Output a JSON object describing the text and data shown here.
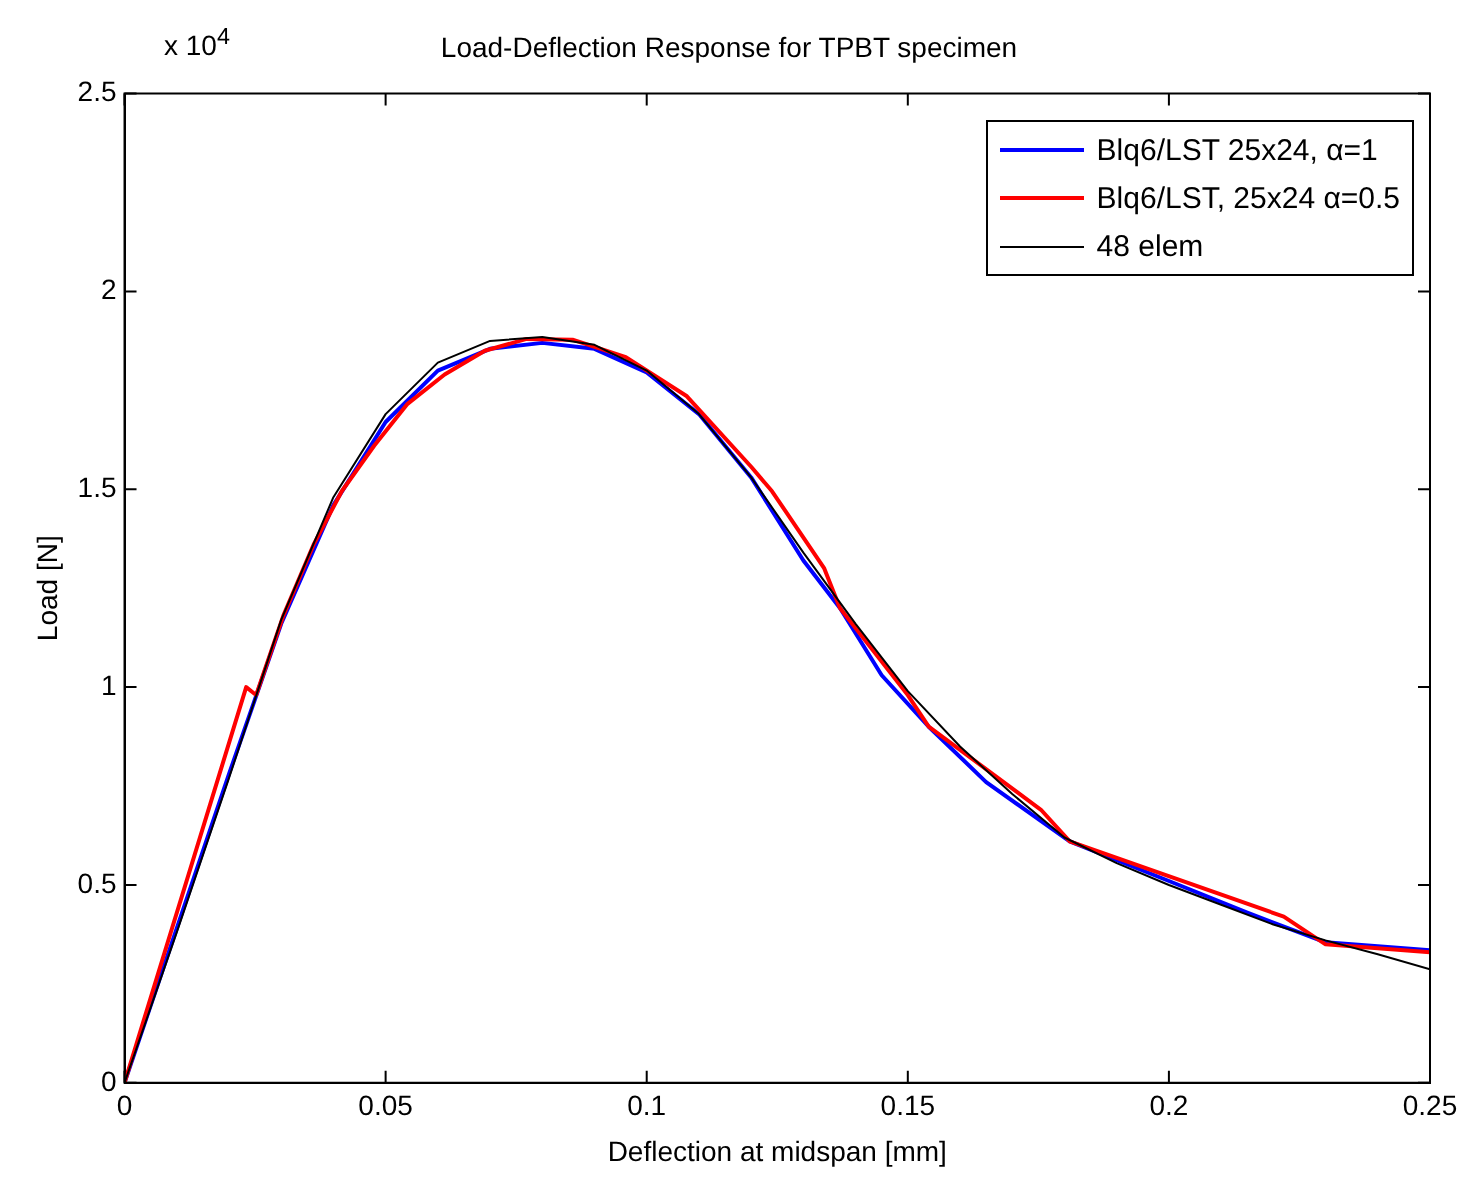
{
  "chart_data": {
    "type": "line",
    "title": "Load-Deflection Response for TPBT specimen",
    "xlabel": "Deflection at midspan [mm]",
    "ylabel": "Load [N]",
    "annotations": [
      "x 10$^{4}$"
    ],
    "xlim": [
      0,
      0.25
    ],
    "xticks": [
      0,
      0.05,
      0.1,
      0.15,
      0.2,
      0.25
    ],
    "ylim": [
      0,
      2.5
    ],
    "yticks": [
      0,
      0.5,
      1,
      1.5,
      2,
      2.5
    ],
    "grid": false,
    "legend": "top right",
    "series": [
      {
        "name": "Blq6/LST 25x24, α=1",
        "color": "#0000ff",
        "x": [
          0,
          0.01,
          0.02,
          0.03,
          0.04,
          0.05,
          0.06,
          0.07,
          0.08,
          0.09,
          0.1,
          0.11,
          0.12,
          0.13,
          0.137,
          0.145,
          0.154,
          0.165,
          0.181,
          0.2,
          0.215,
          0.23,
          0.25
        ],
        "values": [
          0,
          0.39,
          0.78,
          1.16,
          1.46,
          1.67,
          1.8,
          1.855,
          1.87,
          1.855,
          1.795,
          1.69,
          1.53,
          1.32,
          1.2,
          1.03,
          0.9,
          0.76,
          0.61,
          0.51,
          0.43,
          0.355,
          0.335
        ]
      },
      {
        "name": "Blq6/LST, 25x24 α=0.5",
        "color": "#ff0000",
        "x": [
          0,
          0.0233,
          0.0252,
          0.0304,
          0.0362,
          0.0416,
          0.0478,
          0.0542,
          0.0613,
          0.069,
          0.077,
          0.0858,
          0.096,
          0.1077,
          0.12,
          0.124,
          0.134,
          0.137,
          0.15,
          0.154,
          0.1755,
          0.181,
          0.222,
          0.23,
          0.25
        ],
        "values": [
          0,
          1.0,
          0.98,
          1.18,
          1.36,
          1.495,
          1.61,
          1.716,
          1.79,
          1.85,
          1.88,
          1.878,
          1.834,
          1.735,
          1.557,
          1.495,
          1.3,
          1.2,
          0.98,
          0.9,
          0.69,
          0.61,
          0.42,
          0.35,
          0.33
        ]
      },
      {
        "name": "48 elem",
        "color": "#000000",
        "x": [
          0,
          0.01,
          0.02,
          0.03,
          0.04,
          0.05,
          0.06,
          0.07,
          0.08,
          0.09,
          0.1,
          0.11,
          0.12,
          0.13,
          0.14,
          0.15,
          0.16,
          0.17,
          0.18,
          0.19,
          0.2,
          0.21,
          0.22,
          0.23,
          0.24,
          0.25
        ],
        "values": [
          0,
          0.38,
          0.77,
          1.17,
          1.48,
          1.69,
          1.82,
          1.875,
          1.885,
          1.865,
          1.8,
          1.69,
          1.53,
          1.34,
          1.16,
          0.99,
          0.85,
          0.73,
          0.62,
          0.555,
          0.5,
          0.45,
          0.4,
          0.36,
          0.325,
          0.287
        ]
      }
    ]
  }
}
